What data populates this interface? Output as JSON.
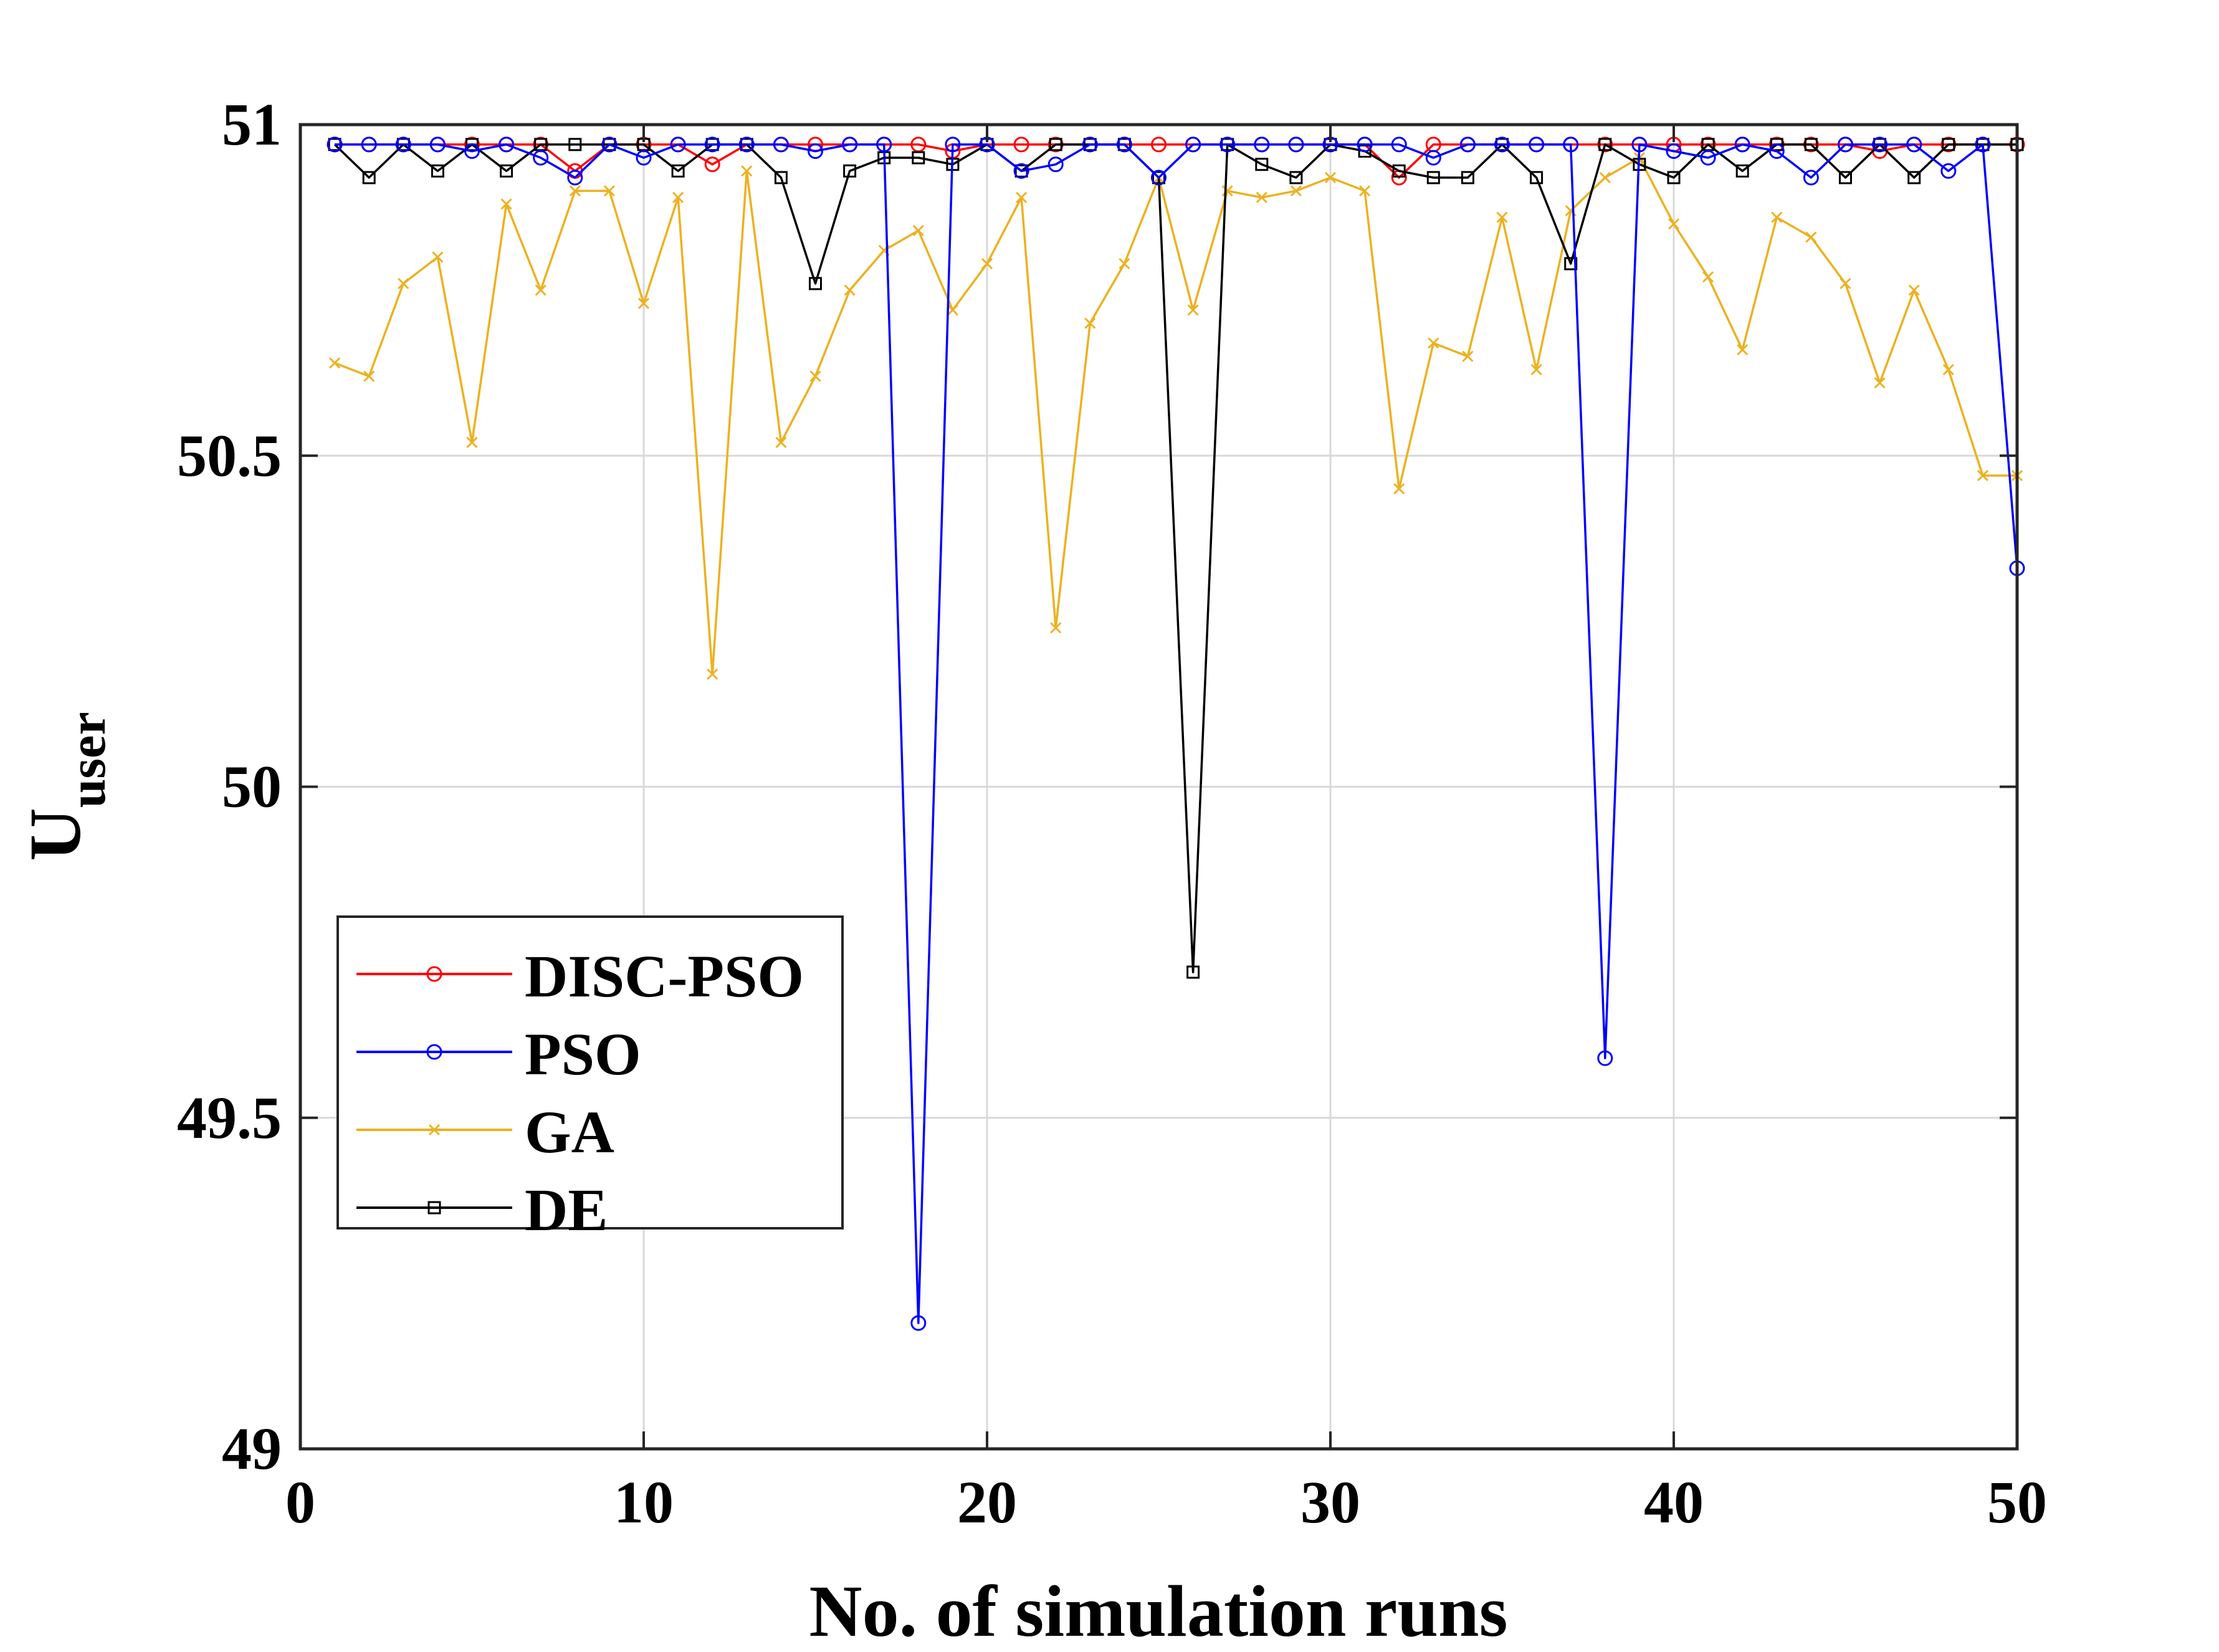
{
  "chart_data": {
    "type": "line",
    "title": "",
    "xlabel": "No. of simulation runs",
    "ylabel": {
      "main": "U",
      "subscript": "user"
    },
    "xlim": [
      0,
      50
    ],
    "ylim": [
      49,
      51
    ],
    "xticks": [
      0,
      10,
      20,
      30,
      40,
      50
    ],
    "yticks": [
      49,
      49.5,
      50,
      50.5,
      51
    ],
    "xtick_labels": [
      "0",
      "10",
      "20",
      "30",
      "40",
      "50"
    ],
    "ytick_labels": [
      "49",
      "49.5",
      "50",
      "50.5",
      "51"
    ],
    "grid": true,
    "legend_position": "lower-left",
    "x": [
      1,
      2,
      3,
      4,
      5,
      6,
      7,
      8,
      9,
      10,
      11,
      12,
      13,
      14,
      15,
      16,
      17,
      18,
      19,
      20,
      21,
      22,
      23,
      24,
      25,
      26,
      27,
      28,
      29,
      30,
      31,
      32,
      33,
      34,
      35,
      36,
      37,
      38,
      39,
      40,
      41,
      42,
      43,
      44,
      45,
      46,
      47,
      48,
      49,
      50
    ],
    "series": [
      {
        "name": "DISC-PSO",
        "color": "#ff0000",
        "marker": "circle",
        "values": [
          50.97,
          50.97,
          50.97,
          50.97,
          50.97,
          50.97,
          50.97,
          50.93,
          50.97,
          50.97,
          50.97,
          50.94,
          50.97,
          50.97,
          50.97,
          50.97,
          50.97,
          50.97,
          50.96,
          50.97,
          50.97,
          50.97,
          50.97,
          50.97,
          50.97,
          50.97,
          50.97,
          50.97,
          50.97,
          50.97,
          50.97,
          50.92,
          50.97,
          50.97,
          50.97,
          50.97,
          50.97,
          50.97,
          50.97,
          50.97,
          50.97,
          50.97,
          50.97,
          50.97,
          50.97,
          50.96,
          50.97,
          50.97,
          50.97,
          50.97
        ]
      },
      {
        "name": "PSO",
        "color": "#0000ff",
        "marker": "circle",
        "values": [
          50.97,
          50.97,
          50.97,
          50.97,
          50.96,
          50.97,
          50.95,
          50.92,
          50.97,
          50.95,
          50.97,
          50.97,
          50.97,
          50.97,
          50.96,
          50.97,
          50.97,
          49.19,
          50.97,
          50.97,
          50.93,
          50.94,
          50.97,
          50.97,
          50.92,
          50.97,
          50.97,
          50.97,
          50.97,
          50.97,
          50.97,
          50.97,
          50.95,
          50.97,
          50.97,
          50.97,
          50.97,
          49.59,
          50.97,
          50.96,
          50.95,
          50.97,
          50.96,
          50.92,
          50.97,
          50.97,
          50.97,
          50.93,
          50.97,
          50.33
        ]
      },
      {
        "name": "GA",
        "color": "#edb120",
        "marker": "x",
        "values": [
          50.64,
          50.62,
          50.76,
          50.8,
          50.52,
          50.88,
          50.75,
          50.9,
          50.9,
          50.73,
          50.89,
          50.17,
          50.93,
          50.52,
          50.62,
          50.75,
          50.81,
          50.84,
          50.72,
          50.79,
          50.89,
          50.24,
          50.7,
          50.79,
          50.92,
          50.72,
          50.9,
          50.89,
          50.9,
          50.92,
          50.9,
          50.45,
          50.67,
          50.65,
          50.86,
          50.63,
          50.87,
          50.92,
          50.95,
          50.85,
          50.77,
          50.66,
          50.86,
          50.83,
          50.76,
          50.61,
          50.75,
          50.63,
          50.47,
          50.47
        ]
      },
      {
        "name": "DE",
        "color": "#000000",
        "marker": "square",
        "values": [
          50.97,
          50.92,
          50.97,
          50.93,
          50.97,
          50.93,
          50.97,
          50.97,
          50.97,
          50.97,
          50.93,
          50.97,
          50.97,
          50.92,
          50.76,
          50.93,
          50.95,
          50.95,
          50.94,
          50.97,
          50.93,
          50.97,
          50.97,
          50.97,
          50.92,
          49.72,
          50.97,
          50.94,
          50.92,
          50.97,
          50.96,
          50.93,
          50.92,
          50.92,
          50.97,
          50.92,
          50.79,
          50.97,
          50.94,
          50.92,
          50.97,
          50.93,
          50.97,
          50.97,
          50.92,
          50.97,
          50.92,
          50.97,
          50.97,
          50.97
        ]
      }
    ]
  }
}
